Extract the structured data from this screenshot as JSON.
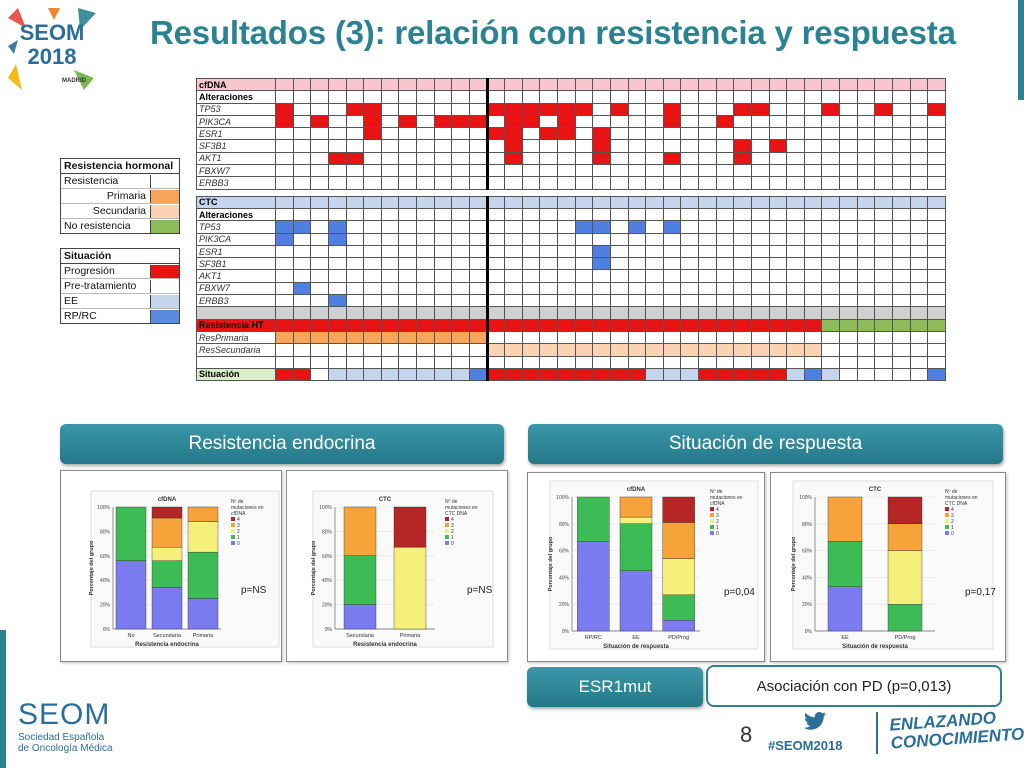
{
  "header": {
    "title": "Resultados (3): relación con resistencia y respuesta",
    "logo": {
      "line1": "SEOM",
      "line2": "2018",
      "city": "MADRID"
    }
  },
  "legend_resistencia": {
    "title": "Resistencia hormonal",
    "items": [
      {
        "label": "Resistencia",
        "color": ""
      },
      {
        "label": "Primaria",
        "color": "#f7a55a"
      },
      {
        "label": "Secundaria",
        "color": "#fbd2b4"
      },
      {
        "label": "No resistencia",
        "color": "#8dbb5a"
      }
    ]
  },
  "legend_situacion": {
    "title": "Situación",
    "items": [
      {
        "label": "Progresión",
        "color": "#e81414"
      },
      {
        "label": "Pre-tratamiento",
        "color": "#ffffff"
      },
      {
        "label": "EE",
        "color": "#c6d5ee"
      },
      {
        "label": "RP/RC",
        "color": "#5b8bdc"
      }
    ]
  },
  "grid": {
    "cfdna_label": "cfDNA",
    "ctc_label": "CTC",
    "alteraciones_label": "Alteraciones",
    "cfdna_genes": [
      "TP53",
      "PIK3CA",
      "ESR1",
      "SF3B1",
      "AKT1",
      "FBXW7",
      "ERBB3"
    ],
    "ctc_genes": [
      "TP53",
      "PIK3CA",
      "ESR1",
      "SF3B1",
      "AKT1",
      "FBXW7",
      "ERBB3"
    ],
    "resistencia_label": "Resistencia HT",
    "resprimaria_label": "ResPrimaria",
    "ressecundaria_label": "ResSecundaria",
    "situacion_label": "Situación"
  },
  "sections": {
    "left_title": "Resistencia endocrina",
    "right_title": "Situación de respuesta"
  },
  "charts": [
    {
      "title": "cfDNA",
      "pval": "p=NS",
      "xlabel": "Resistencia endocrina",
      "ylabel": "Porcentaje del grupo",
      "legend_title": "Nº de mutaciones en cfDNA",
      "chart_data": {
        "type": "bar",
        "stacked": true,
        "categories": [
          "No",
          "Secundaria",
          "Primaria"
        ],
        "series": [
          {
            "name": "0",
            "color": "#7b7bf0",
            "values": [
              56,
              34,
              25
            ]
          },
          {
            "name": "1",
            "color": "#3dbb55",
            "values": [
              44,
              22,
              38
            ]
          },
          {
            "name": "2",
            "color": "#f5f07a",
            "values": [
              0,
              11,
              25
            ]
          },
          {
            "name": "3",
            "color": "#f6a33a",
            "values": [
              0,
              24,
              12
            ]
          },
          {
            "name": "4",
            "color": "#b52525",
            "values": [
              0,
              9,
              0
            ]
          }
        ],
        "ylim": [
          0,
          100
        ]
      }
    },
    {
      "title": "CTC",
      "pval": "p=NS",
      "xlabel": "Resistencia endocrina",
      "ylabel": "Porcentaje del grupo",
      "legend_title": "Nº de mutaciones en CTC DNA",
      "chart_data": {
        "type": "bar",
        "stacked": true,
        "categories": [
          "Secundaria",
          "Primaria"
        ],
        "series": [
          {
            "name": "0",
            "color": "#7b7bf0",
            "values": [
              20,
              0
            ]
          },
          {
            "name": "1",
            "color": "#3dbb55",
            "values": [
              40,
              0
            ]
          },
          {
            "name": "2",
            "color": "#f5f07a",
            "values": [
              0,
              67
            ]
          },
          {
            "name": "3",
            "color": "#f6a33a",
            "values": [
              40,
              0
            ]
          },
          {
            "name": "4",
            "color": "#b52525",
            "values": [
              0,
              33
            ]
          }
        ],
        "ylim": [
          0,
          100
        ]
      }
    },
    {
      "title": "cfDNA",
      "pval": "p=0,04",
      "xlabel": "Situación de respuesta",
      "ylabel": "Porcentaje del grupo",
      "legend_title": "Nº de mutaciones en cfDNA",
      "chart_data": {
        "type": "bar",
        "stacked": true,
        "categories": [
          "RP/RC",
          "EE",
          "PD/Prog"
        ],
        "series": [
          {
            "name": "0",
            "color": "#7b7bf0",
            "values": [
              67,
              45,
              8
            ]
          },
          {
            "name": "1",
            "color": "#3dbb55",
            "values": [
              33,
              35,
              19
            ]
          },
          {
            "name": "2",
            "color": "#f5f07a",
            "values": [
              0,
              5,
              27
            ]
          },
          {
            "name": "3",
            "color": "#f6a33a",
            "values": [
              0,
              15,
              27
            ]
          },
          {
            "name": "4",
            "color": "#b52525",
            "values": [
              0,
              0,
              19
            ]
          }
        ],
        "ylim": [
          0,
          100
        ]
      }
    },
    {
      "title": "CTC",
      "pval": "p=0,17",
      "xlabel": "Situación de respuesta",
      "ylabel": "Porcentaje del grupo",
      "legend_title": "Nº de mutaciones en CTC DNA",
      "chart_data": {
        "type": "bar",
        "stacked": true,
        "categories": [
          "EE",
          "PD/Prog"
        ],
        "series": [
          {
            "name": "0",
            "color": "#7b7bf0",
            "values": [
              33,
              0
            ]
          },
          {
            "name": "1",
            "color": "#3dbb55",
            "values": [
              34,
              20
            ]
          },
          {
            "name": "2",
            "color": "#f5f07a",
            "values": [
              0,
              40
            ]
          },
          {
            "name": "3",
            "color": "#f6a33a",
            "values": [
              33,
              20
            ]
          },
          {
            "name": "4",
            "color": "#b52525",
            "values": [
              0,
              20
            ]
          }
        ],
        "ylim": [
          0,
          100
        ]
      }
    }
  ],
  "bottom": {
    "esr_label": "ESR1mut",
    "assoc_label": "Asociación con PD (p=0,013)",
    "page": "8",
    "hashtag": "#SEOM2018",
    "tagline_1": "ENLAZANDO",
    "tagline_2": "CONOCIMIENTO",
    "seom_name": "SEOM",
    "seom_sub1": "Sociedad Española",
    "seom_sub2": "de Oncología Médica"
  }
}
